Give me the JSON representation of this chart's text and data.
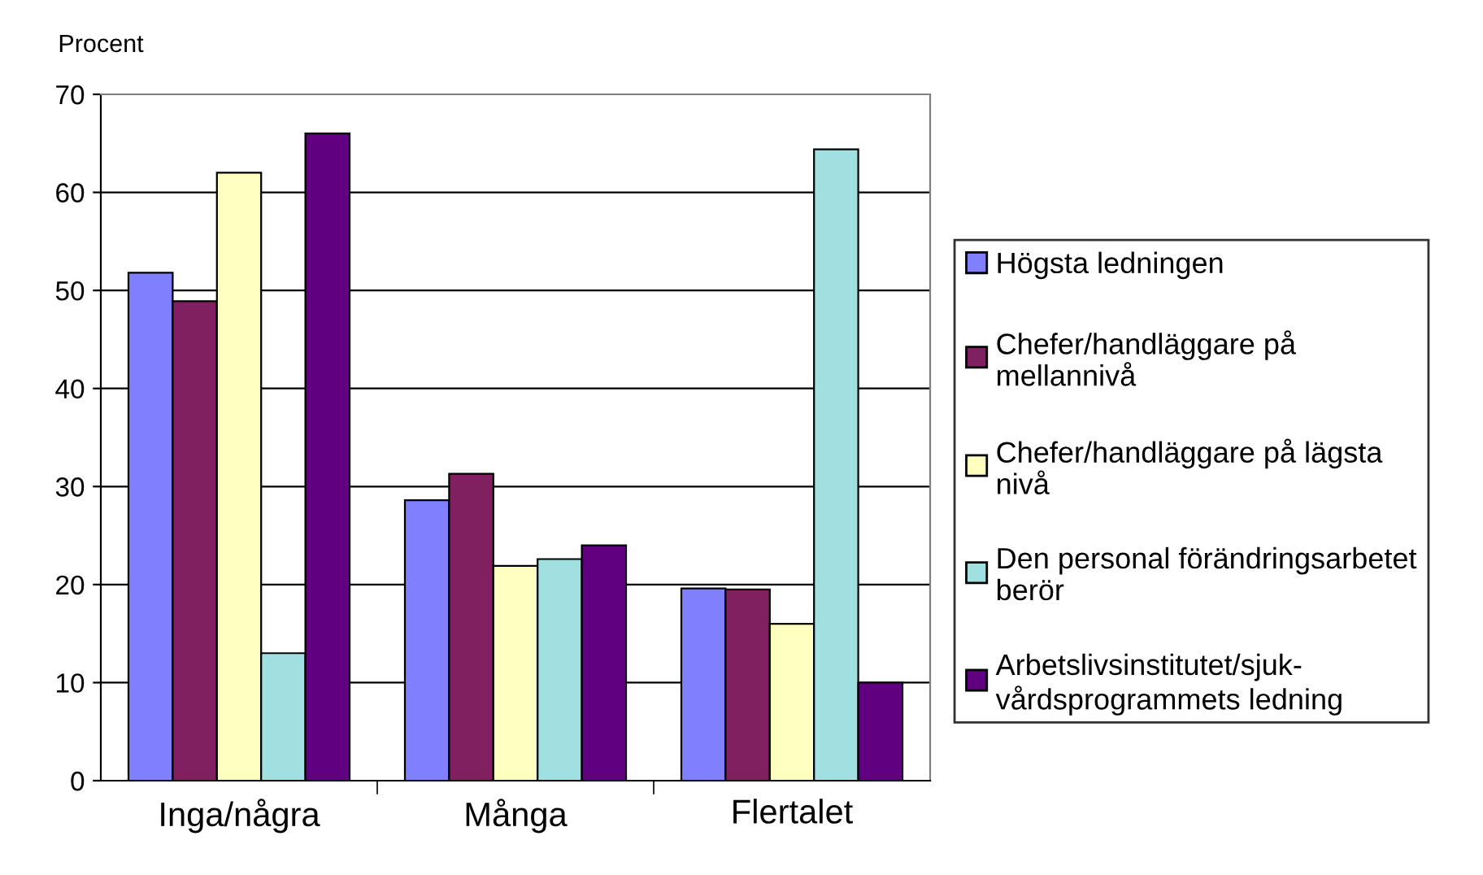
{
  "chart_data": {
    "type": "bar",
    "ylabel": "Procent",
    "categories": [
      "Inga/några",
      "Många",
      "Flertalet"
    ],
    "series": [
      {
        "name": "Högsta ledningen",
        "color": "#8080ff",
        "values": [
          51.8,
          28.6,
          19.6
        ]
      },
      {
        "name": "Chefer/handläggare på mellannivå",
        "color": "#802060",
        "values": [
          48.9,
          31.3,
          19.5
        ]
      },
      {
        "name": "Chefer/handläggare på lägsta nivå",
        "color": "#ffffc0",
        "values": [
          62,
          21.9,
          16
        ]
      },
      {
        "name": "Den personal förändringsarbetet berör",
        "color": "#a0e0e0",
        "values": [
          13,
          22.6,
          64.4
        ]
      },
      {
        "name": "Arbetslivsinstitutet/sjuk-vårdsprogrammets ledning",
        "color": "#600080",
        "values": [
          66,
          24,
          10
        ]
      }
    ],
    "ylim": [
      0,
      70
    ],
    "yticks": [
      0,
      10,
      20,
      30,
      40,
      50,
      60,
      70
    ],
    "grid": "y",
    "legend": "right"
  }
}
